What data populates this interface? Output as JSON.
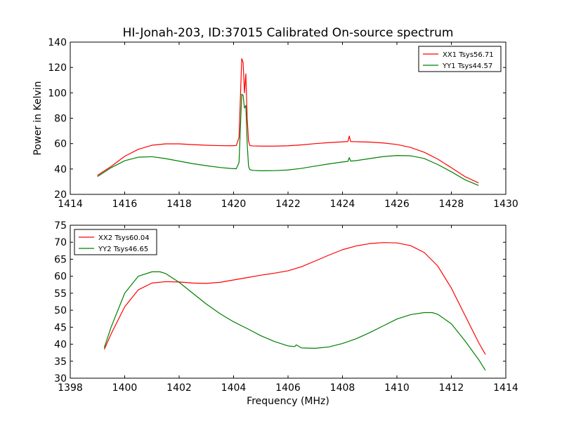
{
  "title": "HI-Jonah-203, ID:37015 Calibrated On-source spectrum",
  "chart_data": [
    {
      "type": "line",
      "ylabel": "Power in Kelvin",
      "xlabel": "",
      "xlim": [
        1414,
        1430
      ],
      "ylim": [
        20,
        140
      ],
      "xticks": [
        1414,
        1416,
        1418,
        1420,
        1422,
        1424,
        1426,
        1428,
        1430
      ],
      "yticks": [
        20,
        40,
        60,
        80,
        100,
        120,
        140
      ],
      "legend": "top-right",
      "series": [
        {
          "name": "XX1 Tsys56.71",
          "color": "#ff0000",
          "x": [
            1415.0,
            1415.5,
            1416.0,
            1416.5,
            1417.0,
            1417.5,
            1418.0,
            1418.5,
            1419.0,
            1419.5,
            1419.9,
            1420.1,
            1420.2,
            1420.3,
            1420.35,
            1420.4,
            1420.45,
            1420.5,
            1420.55,
            1420.6,
            1420.7,
            1421.0,
            1421.5,
            1422.0,
            1422.5,
            1423.0,
            1423.5,
            1424.0,
            1424.2,
            1424.25,
            1424.3,
            1424.5,
            1425.0,
            1425.5,
            1426.0,
            1426.5,
            1427.0,
            1427.5,
            1428.0,
            1428.5,
            1429.0
          ],
          "y": [
            35,
            42,
            50,
            55.5,
            58.7,
            59.8,
            59.8,
            59.2,
            58.7,
            58.4,
            58.3,
            58.5,
            65,
            127,
            124,
            100,
            115,
            80,
            62,
            58.5,
            58.2,
            58,
            58,
            58.3,
            59,
            60,
            60.8,
            61.4,
            61.6,
            66,
            61.6,
            61.5,
            61.2,
            60.5,
            59.3,
            57,
            53.2,
            47.8,
            41,
            34,
            29
          ]
        },
        {
          "name": "YY1 Tsys44.57",
          "color": "#008000",
          "x": [
            1415.0,
            1415.5,
            1416.0,
            1416.5,
            1417.0,
            1417.5,
            1418.0,
            1418.5,
            1419.0,
            1419.5,
            1419.9,
            1420.1,
            1420.2,
            1420.3,
            1420.35,
            1420.4,
            1420.45,
            1420.5,
            1420.55,
            1420.6,
            1420.7,
            1421.0,
            1421.5,
            1422.0,
            1422.5,
            1423.0,
            1423.5,
            1424.0,
            1424.2,
            1424.25,
            1424.3,
            1424.5,
            1425.0,
            1425.5,
            1426.0,
            1426.5,
            1427.0,
            1427.5,
            1428.0,
            1428.5,
            1429.0
          ],
          "y": [
            34,
            41,
            46.5,
            49.3,
            49.7,
            48.2,
            46.2,
            44.2,
            42.6,
            41.2,
            40.4,
            40.2,
            45,
            99,
            98,
            88,
            90,
            60,
            42,
            39.5,
            38.9,
            38.6,
            38.7,
            39.2,
            40.5,
            42.3,
            44,
            45.5,
            46,
            49,
            46.2,
            46.6,
            48.2,
            49.8,
            50.6,
            50.4,
            48.3,
            43.5,
            37.8,
            31.5,
            27
          ]
        }
      ]
    },
    {
      "type": "line",
      "ylabel": "",
      "xlabel": "Frequency (MHz)",
      "xlim": [
        1398,
        1414
      ],
      "ylim": [
        30,
        75
      ],
      "xticks": [
        1398,
        1400,
        1402,
        1404,
        1406,
        1408,
        1410,
        1412,
        1414
      ],
      "yticks": [
        30,
        35,
        40,
        45,
        50,
        55,
        60,
        65,
        70,
        75
      ],
      "legend": "top-left",
      "series": [
        {
          "name": "XX2 Tsys60.04",
          "color": "#ff0000",
          "x": [
            1399.25,
            1399.5,
            1400.0,
            1400.5,
            1401.0,
            1401.5,
            1402.0,
            1402.5,
            1403.0,
            1403.5,
            1404.0,
            1404.5,
            1405.0,
            1405.5,
            1406.0,
            1406.5,
            1407.0,
            1407.5,
            1408.0,
            1408.5,
            1409.0,
            1409.5,
            1410.0,
            1410.5,
            1411.0,
            1411.5,
            1412.0,
            1412.5,
            1413.0,
            1413.25
          ],
          "y": [
            38.5,
            43,
            51,
            56,
            58,
            58.4,
            58.3,
            58,
            57.9,
            58.2,
            58.9,
            59.6,
            60.3,
            60.9,
            61.6,
            62.8,
            64.5,
            66.2,
            67.8,
            68.9,
            69.6,
            69.9,
            69.8,
            69,
            67,
            63,
            56.5,
            48.5,
            40.5,
            37
          ]
        },
        {
          "name": "YY2 Tsys46.65",
          "color": "#008000",
          "x": [
            1399.25,
            1399.5,
            1400.0,
            1400.5,
            1401.0,
            1401.3,
            1401.5,
            1402.0,
            1402.5,
            1403.0,
            1403.5,
            1404.0,
            1404.5,
            1405.0,
            1405.5,
            1406.0,
            1406.25,
            1406.3,
            1406.5,
            1407.0,
            1407.5,
            1408.0,
            1408.5,
            1409.0,
            1409.5,
            1410.0,
            1410.5,
            1411.0,
            1411.3,
            1411.5,
            1412.0,
            1412.5,
            1413.0,
            1413.25
          ],
          "y": [
            39,
            45,
            55,
            60,
            61.3,
            61.3,
            60.8,
            58.2,
            55,
            51.8,
            49,
            46.6,
            44.6,
            42.5,
            40.8,
            39.5,
            39.3,
            39.8,
            38.9,
            38.8,
            39.2,
            40.2,
            41.6,
            43.4,
            45.4,
            47.4,
            48.7,
            49.3,
            49.3,
            48.8,
            46,
            41,
            35.5,
            32.3
          ]
        }
      ]
    }
  ]
}
